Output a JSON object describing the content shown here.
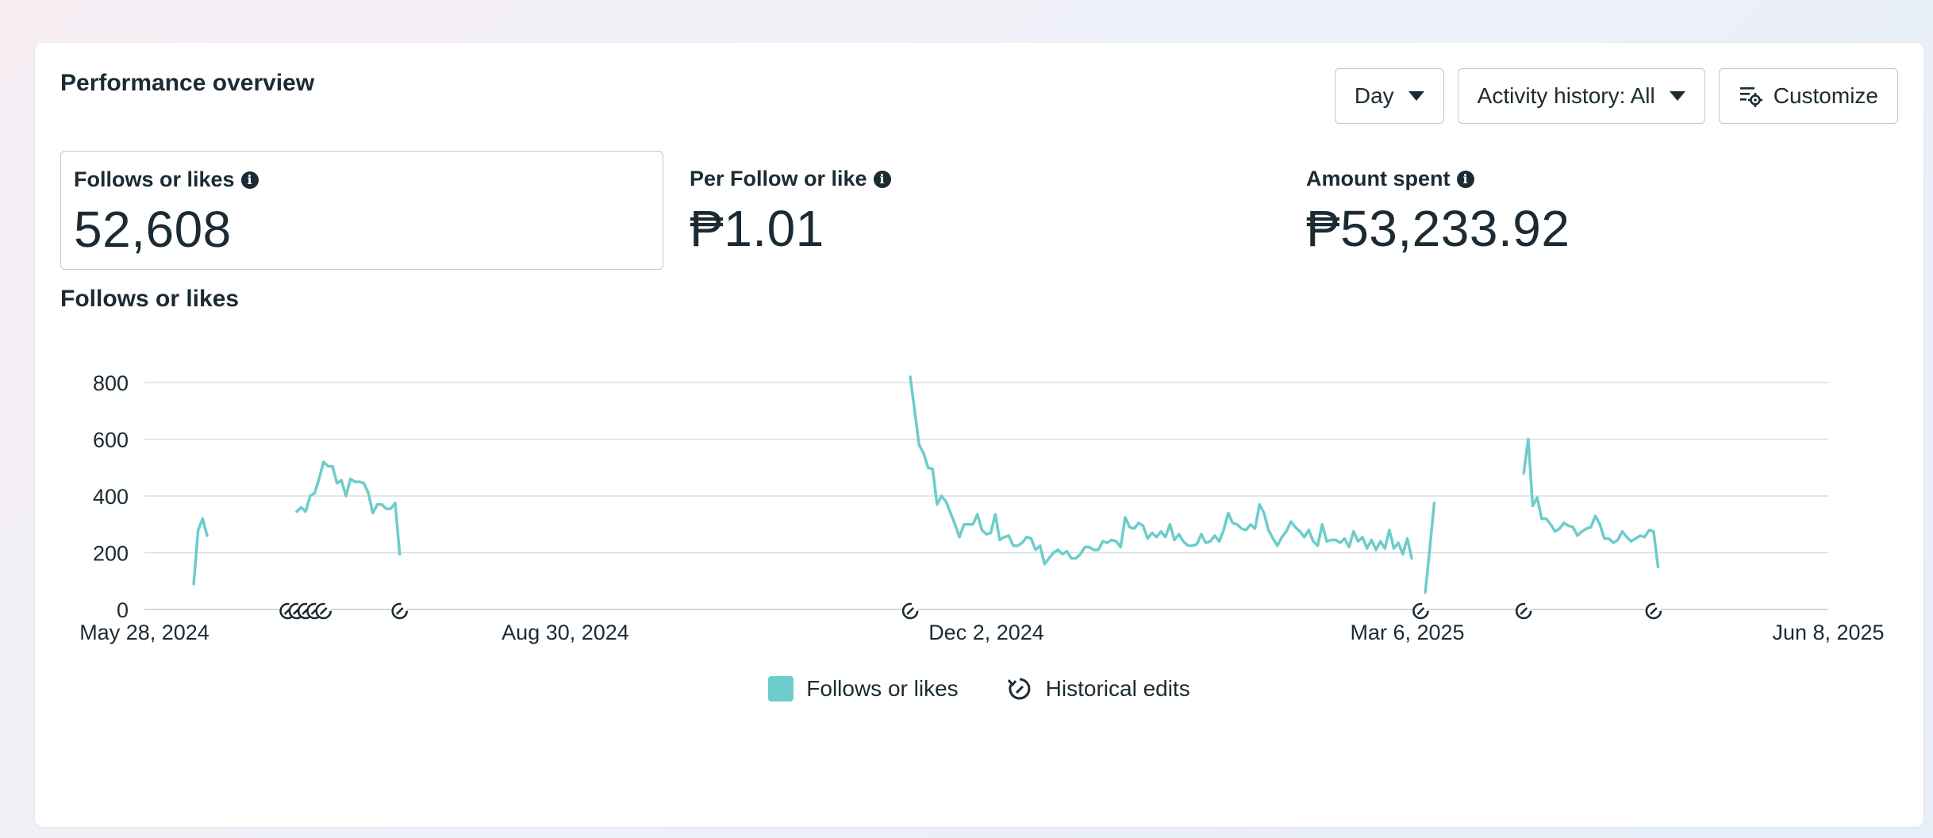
{
  "card_title": "Performance overview",
  "controls": {
    "period_label": "Day",
    "activity_label": "Activity history: All",
    "customize_label": "Customize"
  },
  "metrics": [
    {
      "label": "Follows or likes",
      "value": "52,608",
      "selected": true
    },
    {
      "label": "Per Follow or like",
      "value": "₱1.01",
      "selected": false
    },
    {
      "label": "Amount spent",
      "value": "₱53,233.92",
      "selected": false
    }
  ],
  "chart_title": "Follows or likes",
  "legend": {
    "series_label": "Follows or likes",
    "edits_label": "Historical edits"
  },
  "colors": {
    "series": "#6ccdcb",
    "grid": "#dadde1",
    "text": "#1c2b33"
  },
  "icons": {
    "info": "info-icon",
    "caret": "caret-down-icon",
    "customize": "sliders-gear-icon",
    "edit_marker": "historical-edit-icon"
  },
  "chart_data": {
    "type": "line",
    "title": "",
    "xlabel": "",
    "ylabel": "",
    "ylim": [
      0,
      800
    ],
    "yticks": [
      "0",
      "200",
      "400",
      "600",
      "800"
    ],
    "yticks_values": [
      0,
      200,
      400,
      600,
      800
    ],
    "xlim": [
      "2024-05-28",
      "2025-06-08"
    ],
    "xticks": [
      {
        "date": "2024-05-28",
        "label": "May 28, 2024"
      },
      {
        "date": "2024-08-30",
        "label": "Aug 30, 2024"
      },
      {
        "date": "2024-12-02",
        "label": "Dec 2, 2024"
      },
      {
        "date": "2025-03-06",
        "label": "Mar 6, 2025"
      },
      {
        "date": "2025-06-08",
        "label": "Jun 8, 2025"
      }
    ],
    "grid": true,
    "legend_position": "bottom-center",
    "series": [
      {
        "name": "Follows or likes",
        "segments": [
          [
            [
              "2024-06-08",
              90
            ],
            [
              "2024-06-09",
              280
            ],
            [
              "2024-06-10",
              320
            ],
            [
              "2024-06-11",
              260
            ]
          ],
          [
            [
              "2024-07-01",
              345
            ],
            [
              "2024-07-02",
              360
            ],
            [
              "2024-07-03",
              345
            ],
            [
              "2024-07-04",
              400
            ],
            [
              "2024-07-05",
              410
            ],
            [
              "2024-07-06",
              460
            ],
            [
              "2024-07-07",
              520
            ],
            [
              "2024-07-08",
              505
            ],
            [
              "2024-07-09",
              505
            ],
            [
              "2024-07-10",
              445
            ],
            [
              "2024-07-11",
              455
            ],
            [
              "2024-07-12",
              400
            ],
            [
              "2024-07-13",
              460
            ],
            [
              "2024-07-14",
              450
            ],
            [
              "2024-07-15",
              450
            ],
            [
              "2024-07-16",
              445
            ],
            [
              "2024-07-17",
              410
            ],
            [
              "2024-07-18",
              340
            ],
            [
              "2024-07-19",
              370
            ],
            [
              "2024-07-20",
              370
            ],
            [
              "2024-07-21",
              355
            ],
            [
              "2024-07-22",
              355
            ],
            [
              "2024-07-23",
              375
            ],
            [
              "2024-07-24",
              195
            ]
          ],
          [
            [
              "2024-11-15",
              820
            ],
            [
              "2024-11-16",
              700
            ],
            [
              "2024-11-17",
              580
            ],
            [
              "2024-11-18",
              550
            ],
            [
              "2024-11-19",
              500
            ],
            [
              "2024-11-20",
              495
            ],
            [
              "2024-11-21",
              370
            ],
            [
              "2024-11-22",
              400
            ],
            [
              "2024-11-23",
              380
            ],
            [
              "2024-11-24",
              340
            ],
            [
              "2024-11-25",
              300
            ],
            [
              "2024-11-26",
              255
            ],
            [
              "2024-11-27",
              300
            ],
            [
              "2024-11-28",
              300
            ],
            [
              "2024-11-29",
              300
            ],
            [
              "2024-11-30",
              335
            ],
            [
              "2024-12-01",
              280
            ],
            [
              "2024-12-02",
              265
            ],
            [
              "2024-12-03",
              270
            ],
            [
              "2024-12-04",
              335
            ],
            [
              "2024-12-05",
              245
            ],
            [
              "2024-12-06",
              255
            ],
            [
              "2024-12-07",
              260
            ],
            [
              "2024-12-08",
              225
            ],
            [
              "2024-12-09",
              225
            ],
            [
              "2024-12-10",
              235
            ],
            [
              "2024-12-11",
              255
            ],
            [
              "2024-12-12",
              250
            ],
            [
              "2024-12-13",
              210
            ],
            [
              "2024-12-14",
              225
            ],
            [
              "2024-12-15",
              160
            ],
            [
              "2024-12-16",
              180
            ],
            [
              "2024-12-17",
              200
            ],
            [
              "2024-12-18",
              210
            ],
            [
              "2024-12-19",
              195
            ],
            [
              "2024-12-20",
              205
            ],
            [
              "2024-12-21",
              180
            ],
            [
              "2024-12-22",
              180
            ],
            [
              "2024-12-23",
              195
            ],
            [
              "2024-12-24",
              220
            ],
            [
              "2024-12-25",
              220
            ],
            [
              "2024-12-26",
              210
            ],
            [
              "2024-12-27",
              210
            ],
            [
              "2024-12-28",
              240
            ],
            [
              "2024-12-29",
              235
            ],
            [
              "2024-12-30",
              245
            ],
            [
              "2024-12-31",
              240
            ],
            [
              "2025-01-01",
              220
            ],
            [
              "2025-01-02",
              325
            ],
            [
              "2025-01-03",
              290
            ],
            [
              "2025-01-04",
              285
            ],
            [
              "2025-01-05",
              305
            ],
            [
              "2025-01-06",
              295
            ],
            [
              "2025-01-07",
              250
            ],
            [
              "2025-01-08",
              270
            ],
            [
              "2025-01-09",
              255
            ],
            [
              "2025-01-10",
              275
            ],
            [
              "2025-01-11",
              255
            ],
            [
              "2025-01-12",
              300
            ],
            [
              "2025-01-13",
              245
            ],
            [
              "2025-01-14",
              265
            ],
            [
              "2025-01-15",
              240
            ],
            [
              "2025-01-16",
              225
            ],
            [
              "2025-01-17",
              225
            ],
            [
              "2025-01-18",
              230
            ],
            [
              "2025-01-19",
              265
            ],
            [
              "2025-01-20",
              235
            ],
            [
              "2025-01-21",
              240
            ],
            [
              "2025-01-22",
              260
            ],
            [
              "2025-01-23",
              240
            ],
            [
              "2025-01-24",
              280
            ],
            [
              "2025-01-25",
              340
            ],
            [
              "2025-01-26",
              305
            ],
            [
              "2025-01-27",
              300
            ],
            [
              "2025-01-28",
              285
            ],
            [
              "2025-01-29",
              280
            ],
            [
              "2025-01-30",
              300
            ],
            [
              "2025-01-31",
              285
            ],
            [
              "2025-02-01",
              370
            ],
            [
              "2025-02-02",
              340
            ],
            [
              "2025-02-03",
              280
            ],
            [
              "2025-02-04",
              250
            ],
            [
              "2025-02-05",
              225
            ],
            [
              "2025-02-06",
              255
            ],
            [
              "2025-02-07",
              275
            ],
            [
              "2025-02-08",
              310
            ],
            [
              "2025-02-09",
              290
            ],
            [
              "2025-02-10",
              275
            ],
            [
              "2025-02-11",
              255
            ],
            [
              "2025-02-12",
              280
            ],
            [
              "2025-02-13",
              240
            ],
            [
              "2025-02-14",
              225
            ],
            [
              "2025-02-15",
              300
            ],
            [
              "2025-02-16",
              240
            ],
            [
              "2025-02-17",
              245
            ],
            [
              "2025-02-18",
              245
            ],
            [
              "2025-02-19",
              235
            ],
            [
              "2025-02-20",
              250
            ],
            [
              "2025-02-21",
              220
            ],
            [
              "2025-02-22",
              275
            ],
            [
              "2025-02-23",
              240
            ],
            [
              "2025-02-24",
              255
            ],
            [
              "2025-02-25",
              215
            ],
            [
              "2025-02-26",
              245
            ],
            [
              "2025-02-27",
              210
            ],
            [
              "2025-02-28",
              240
            ],
            [
              "2025-03-01",
              215
            ],
            [
              "2025-03-02",
              280
            ],
            [
              "2025-03-03",
              215
            ],
            [
              "2025-03-04",
              235
            ],
            [
              "2025-03-05",
              195
            ],
            [
              "2025-03-06",
              250
            ],
            [
              "2025-03-07",
              180
            ]
          ],
          [
            [
              "2025-03-10",
              60
            ],
            [
              "2025-03-11",
              210
            ],
            [
              "2025-03-12",
              375
            ]
          ],
          [
            [
              "2025-04-01",
              480
            ],
            [
              "2025-04-02",
              600
            ],
            [
              "2025-04-03",
              365
            ],
            [
              "2025-04-04",
              395
            ],
            [
              "2025-04-05",
              320
            ],
            [
              "2025-04-06",
              320
            ],
            [
              "2025-04-07",
              300
            ],
            [
              "2025-04-08",
              275
            ],
            [
              "2025-04-09",
              285
            ],
            [
              "2025-04-10",
              305
            ],
            [
              "2025-04-11",
              295
            ],
            [
              "2025-04-12",
              290
            ],
            [
              "2025-04-13",
              260
            ],
            [
              "2025-04-14",
              275
            ],
            [
              "2025-04-15",
              285
            ],
            [
              "2025-04-16",
              290
            ],
            [
              "2025-04-17",
              330
            ],
            [
              "2025-04-18",
              300
            ],
            [
              "2025-04-19",
              250
            ],
            [
              "2025-04-20",
              250
            ],
            [
              "2025-04-21",
              235
            ],
            [
              "2025-04-22",
              245
            ],
            [
              "2025-04-23",
              275
            ],
            [
              "2025-04-24",
              255
            ],
            [
              "2025-04-25",
              240
            ],
            [
              "2025-04-26",
              250
            ],
            [
              "2025-04-27",
              260
            ],
            [
              "2025-04-28",
              255
            ],
            [
              "2025-04-29",
              280
            ],
            [
              "2025-04-30",
              275
            ],
            [
              "2025-05-01",
              150
            ]
          ]
        ]
      }
    ],
    "historical_edits": [
      "2024-06-29",
      "2024-07-01",
      "2024-07-03",
      "2024-07-05",
      "2024-07-07",
      "2024-07-24",
      "2024-11-15",
      "2025-03-09",
      "2025-04-01",
      "2025-04-30"
    ]
  }
}
